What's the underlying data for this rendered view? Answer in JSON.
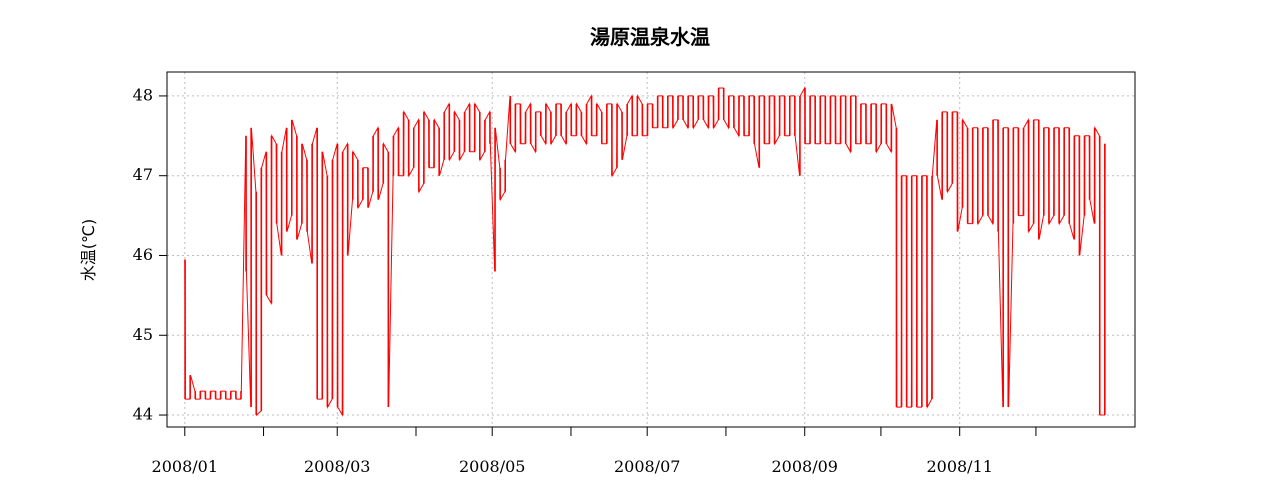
{
  "chart_data": {
    "type": "line",
    "title": "湯原温泉水温",
    "xlabel": "",
    "ylabel": "水温(℃)",
    "x_tick_labels": [
      "2008/01",
      "2008/03",
      "2008/05",
      "2008/07",
      "2008/09",
      "2008/11"
    ],
    "x_ticks_all": [
      "2008-01-01",
      "2008-02-01",
      "2008-03-01",
      "2008-04-01",
      "2008-05-01",
      "2008-06-01",
      "2008-07-01",
      "2008-08-01",
      "2008-09-01",
      "2008-10-01",
      "2008-11-01",
      "2008-12-01"
    ],
    "labeled_ticks": [
      "2008-01-01",
      "2008-03-01",
      "2008-05-01",
      "2008-07-01",
      "2008-09-01",
      "2008-11-01"
    ],
    "y_ticks": [
      44,
      45,
      46,
      47,
      48
    ],
    "xlim": [
      "2007-12-25",
      "2009-01-09"
    ],
    "ylim": [
      43.85,
      48.3
    ],
    "grid": true,
    "series": [
      {
        "color": "#ff0000",
        "x": [
          "2008-01-01",
          "2008-01-03",
          "2008-01-05",
          "2008-01-07",
          "2008-01-09",
          "2008-01-11",
          "2008-01-13",
          "2008-01-15",
          "2008-01-17",
          "2008-01-19",
          "2008-01-21",
          "2008-01-23",
          "2008-01-25",
          "2008-01-27",
          "2008-01-29",
          "2008-01-31",
          "2008-02-02",
          "2008-02-04",
          "2008-02-06",
          "2008-02-08",
          "2008-02-10",
          "2008-02-12",
          "2008-02-14",
          "2008-02-16",
          "2008-02-18",
          "2008-02-20",
          "2008-02-22",
          "2008-02-24",
          "2008-02-26",
          "2008-02-28",
          "2008-03-01",
          "2008-03-03",
          "2008-03-05",
          "2008-03-07",
          "2008-03-09",
          "2008-03-11",
          "2008-03-13",
          "2008-03-15",
          "2008-03-17",
          "2008-03-19",
          "2008-03-21",
          "2008-03-23",
          "2008-03-25",
          "2008-03-27",
          "2008-03-29",
          "2008-03-31",
          "2008-04-02",
          "2008-04-04",
          "2008-04-06",
          "2008-04-08",
          "2008-04-10",
          "2008-04-12",
          "2008-04-14",
          "2008-04-16",
          "2008-04-18",
          "2008-04-20",
          "2008-04-22",
          "2008-04-24",
          "2008-04-26",
          "2008-04-28",
          "2008-04-30",
          "2008-05-02",
          "2008-05-04",
          "2008-05-06",
          "2008-05-08",
          "2008-05-10",
          "2008-05-12",
          "2008-05-14",
          "2008-05-16",
          "2008-05-18",
          "2008-05-20",
          "2008-05-22",
          "2008-05-24",
          "2008-05-26",
          "2008-05-28",
          "2008-05-30",
          "2008-06-01",
          "2008-06-03",
          "2008-06-05",
          "2008-06-07",
          "2008-06-09",
          "2008-06-11",
          "2008-06-13",
          "2008-06-15",
          "2008-06-17",
          "2008-06-19",
          "2008-06-21",
          "2008-06-23",
          "2008-06-25",
          "2008-06-27",
          "2008-06-29",
          "2008-07-01",
          "2008-07-03",
          "2008-07-05",
          "2008-07-07",
          "2008-07-09",
          "2008-07-11",
          "2008-07-13",
          "2008-07-15",
          "2008-07-17",
          "2008-07-19",
          "2008-07-21",
          "2008-07-23",
          "2008-07-25",
          "2008-07-27",
          "2008-07-29",
          "2008-07-31",
          "2008-08-02",
          "2008-08-04",
          "2008-08-06",
          "2008-08-08",
          "2008-08-10",
          "2008-08-12",
          "2008-08-14",
          "2008-08-16",
          "2008-08-18",
          "2008-08-20",
          "2008-08-22",
          "2008-08-24",
          "2008-08-26",
          "2008-08-28",
          "2008-08-30",
          "2008-09-01",
          "2008-09-03",
          "2008-09-05",
          "2008-09-07",
          "2008-09-09",
          "2008-09-11",
          "2008-09-13",
          "2008-09-15",
          "2008-09-17",
          "2008-09-19",
          "2008-09-21",
          "2008-09-23",
          "2008-09-25",
          "2008-09-27",
          "2008-09-29",
          "2008-10-01",
          "2008-10-03",
          "2008-10-05",
          "2008-10-07",
          "2008-10-09",
          "2008-10-11",
          "2008-10-13",
          "2008-10-15",
          "2008-10-17",
          "2008-10-19",
          "2008-10-21",
          "2008-10-23",
          "2008-10-25",
          "2008-10-27",
          "2008-10-29",
          "2008-10-31",
          "2008-11-02",
          "2008-11-04",
          "2008-11-06",
          "2008-11-08",
          "2008-11-10",
          "2008-11-12",
          "2008-11-14",
          "2008-11-16",
          "2008-11-18",
          "2008-11-20",
          "2008-11-22",
          "2008-11-24",
          "2008-11-26",
          "2008-11-28",
          "2008-11-30",
          "2008-12-02",
          "2008-12-04",
          "2008-12-06",
          "2008-12-08",
          "2008-12-10",
          "2008-12-12",
          "2008-12-14",
          "2008-12-16",
          "2008-12-18",
          "2008-12-20",
          "2008-12-22",
          "2008-12-24",
          "2008-12-26",
          "2008-12-28"
        ],
        "y_high": [
          45.95,
          44.5,
          44.3,
          44.3,
          44.3,
          44.3,
          44.3,
          44.3,
          44.3,
          44.3,
          44.3,
          44.3,
          47.5,
          47.6,
          46.8,
          47.1,
          47.3,
          47.5,
          47.4,
          47.3,
          47.6,
          47.7,
          47.5,
          47.4,
          47.2,
          47.4,
          47.6,
          47.3,
          47.0,
          47.2,
          47.4,
          47.3,
          47.4,
          47.3,
          47.2,
          47.1,
          47.1,
          47.5,
          47.6,
          47.4,
          47.3,
          47.5,
          47.6,
          47.8,
          47.7,
          47.6,
          47.7,
          47.8,
          47.7,
          47.7,
          47.6,
          47.8,
          47.9,
          47.8,
          47.7,
          47.8,
          47.9,
          47.9,
          47.8,
          47.7,
          47.8,
          47.6,
          47.1,
          47.2,
          48.0,
          47.9,
          47.9,
          47.8,
          47.9,
          47.8,
          47.8,
          47.9,
          47.8,
          47.9,
          47.9,
          47.8,
          47.9,
          47.9,
          47.8,
          47.9,
          48.0,
          47.9,
          47.8,
          47.9,
          47.9,
          47.9,
          47.8,
          47.9,
          48.0,
          48.0,
          47.9,
          47.9,
          47.9,
          48.0,
          48.0,
          48.0,
          48.0,
          48.0,
          48.0,
          48.0,
          48.0,
          48.0,
          48.0,
          48.0,
          48.0,
          48.1,
          48.1,
          48.0,
          48.0,
          48.0,
          48.0,
          48.0,
          48.0,
          48.0,
          48.0,
          48.0,
          48.0,
          48.0,
          48.0,
          48.0,
          48.0,
          48.0,
          48.1,
          48.0,
          48.0,
          48.0,
          48.0,
          48.0,
          48.0,
          48.0,
          48.0,
          48.0,
          48.0,
          47.9,
          47.9,
          47.9,
          47.9,
          47.9,
          47.9,
          47.9,
          47.6,
          47.0,
          47.0,
          47.0,
          47.0,
          47.0,
          47.0,
          47.0,
          47.7,
          47.8,
          47.8,
          47.8,
          47.8,
          47.7,
          47.6,
          47.6,
          47.6,
          47.6,
          47.6,
          47.7,
          47.7,
          47.6,
          47.6,
          47.6,
          47.6,
          47.6,
          47.7,
          47.7,
          47.7,
          47.6,
          47.6,
          47.6,
          47.6,
          47.6,
          47.6,
          47.5,
          47.5,
          47.5,
          47.5,
          47.6,
          47.5,
          47.4
        ],
        "y_low": [
          44.2,
          44.2,
          44.2,
          44.2,
          44.2,
          44.2,
          44.2,
          44.2,
          44.2,
          44.2,
          44.2,
          44.2,
          45.8,
          44.1,
          44.0,
          44.05,
          45.5,
          45.4,
          46.4,
          46.0,
          46.3,
          46.5,
          46.2,
          46.4,
          46.3,
          45.9,
          44.2,
          44.2,
          44.1,
          44.2,
          44.1,
          44.0,
          46.0,
          46.7,
          46.6,
          46.7,
          46.6,
          46.8,
          46.7,
          46.9,
          44.1,
          47.0,
          47.0,
          47.0,
          47.0,
          47.1,
          46.8,
          46.9,
          47.1,
          47.1,
          47.0,
          47.2,
          47.2,
          47.3,
          47.2,
          47.3,
          47.3,
          47.3,
          47.2,
          47.3,
          47.4,
          45.8,
          46.7,
          46.8,
          47.4,
          47.3,
          47.4,
          47.4,
          47.4,
          47.3,
          47.5,
          47.4,
          47.4,
          47.5,
          47.5,
          47.4,
          47.5,
          47.5,
          47.5,
          47.4,
          47.5,
          47.5,
          47.4,
          47.4,
          47.0,
          47.1,
          47.2,
          47.5,
          47.5,
          47.5,
          47.5,
          47.5,
          47.6,
          47.6,
          47.6,
          47.6,
          47.6,
          47.7,
          47.7,
          47.6,
          47.6,
          47.7,
          47.7,
          47.6,
          47.6,
          47.7,
          47.7,
          47.6,
          47.6,
          47.5,
          47.5,
          47.5,
          47.4,
          47.1,
          47.4,
          47.4,
          47.4,
          47.5,
          47.5,
          47.5,
          47.5,
          47.0,
          47.4,
          47.4,
          47.4,
          47.4,
          47.4,
          47.4,
          47.4,
          47.4,
          47.4,
          47.3,
          47.4,
          47.4,
          47.4,
          47.4,
          47.3,
          47.4,
          47.4,
          47.3,
          44.1,
          44.1,
          44.1,
          44.1,
          44.1,
          44.1,
          44.1,
          44.2,
          47.0,
          46.7,
          46.8,
          46.9,
          46.3,
          46.6,
          46.4,
          46.4,
          46.4,
          46.5,
          46.5,
          46.4,
          46.3,
          44.1,
          44.1,
          46.4,
          46.5,
          46.5,
          46.3,
          46.4,
          46.2,
          46.5,
          46.4,
          46.5,
          46.4,
          46.5,
          46.4,
          46.2,
          46.0,
          46.5,
          46.7,
          46.4,
          44.0,
          44.0
        ]
      }
    ]
  }
}
